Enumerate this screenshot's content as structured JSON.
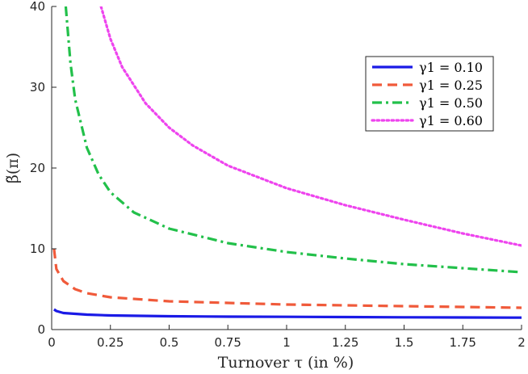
{
  "chart_data": {
    "type": "line",
    "xlabel": "Turnover τ (in %)",
    "ylabel": "β̃(π)",
    "xlim": [
      0,
      2
    ],
    "ylim": [
      0,
      40
    ],
    "xticks": [
      "0",
      "0.25",
      "0.5",
      "0.75",
      "1",
      "1.25",
      "1.5",
      "1.75",
      "2"
    ],
    "yticks": [
      "0",
      "10",
      "20",
      "30",
      "40"
    ],
    "grid": false,
    "legend_position": "top-right",
    "series": [
      {
        "name": "γ1 = 0.10",
        "color": "#1a1ae6",
        "style": "solid",
        "x": [
          0.01,
          0.02,
          0.05,
          0.1,
          0.15,
          0.25,
          0.5,
          0.75,
          1.0,
          1.25,
          1.5,
          1.75,
          2.0
        ],
        "y": [
          2.5,
          2.3,
          2.05,
          1.95,
          1.85,
          1.75,
          1.65,
          1.6,
          1.58,
          1.55,
          1.52,
          1.5,
          1.48
        ]
      },
      {
        "name": "γ1 = 0.25",
        "color": "#f05a3a",
        "style": "dashed",
        "x": [
          0.01,
          0.02,
          0.05,
          0.1,
          0.15,
          0.25,
          0.5,
          0.75,
          1.0,
          1.25,
          1.5,
          1.75,
          2.0
        ],
        "y": [
          10.0,
          7.5,
          6.0,
          5.0,
          4.5,
          4.0,
          3.5,
          3.3,
          3.1,
          3.0,
          2.9,
          2.8,
          2.7
        ]
      },
      {
        "name": "γ1 = 0.50",
        "color": "#22c04a",
        "style": "dashdot",
        "x": [
          0.06,
          0.08,
          0.1,
          0.15,
          0.2,
          0.25,
          0.35,
          0.5,
          0.75,
          1.0,
          1.25,
          1.5,
          1.75,
          2.0
        ],
        "y": [
          40.0,
          33.0,
          28.5,
          22.5,
          19.2,
          17.0,
          14.5,
          12.5,
          10.7,
          9.6,
          8.8,
          8.1,
          7.6,
          7.1
        ]
      },
      {
        "name": "γ1 = 0.60",
        "color": "#ee44ee",
        "style": "dotted",
        "x": [
          0.21,
          0.25,
          0.3,
          0.4,
          0.5,
          0.6,
          0.75,
          1.0,
          1.25,
          1.5,
          1.75,
          2.0
        ],
        "y": [
          40.0,
          36.0,
          32.5,
          28.0,
          25.0,
          22.8,
          20.3,
          17.5,
          15.4,
          13.6,
          11.9,
          10.4
        ]
      }
    ]
  }
}
